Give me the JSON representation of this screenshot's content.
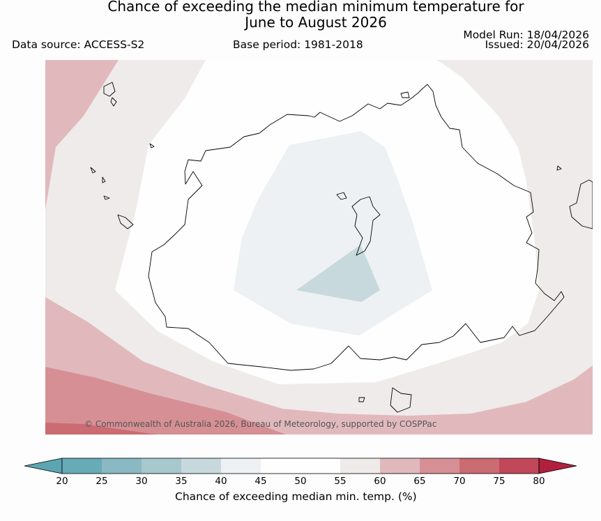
{
  "header": {
    "title_line1": "Chance of exceeding the median minimum temperature for",
    "title_line2": "June to August 2026",
    "data_source": "Data source: ACCESS-S2",
    "base_period": "Base period: 1981-2018",
    "model_run": "Model Run: 18/04/2026",
    "issued": "Issued: 20/04/2026"
  },
  "map": {
    "copyright": "© Commonwealth of Australia 2026, Bureau of Meteorology, supported by COSPPac"
  },
  "legend": {
    "label": "Chance of exceeding median min. temp. (%)",
    "ticks": [
      "20",
      "25",
      "30",
      "35",
      "40",
      "45",
      "50",
      "55",
      "60",
      "65",
      "70",
      "75",
      "80"
    ],
    "colors": [
      "#67abb7",
      "#8ab9c3",
      "#a7c8cc",
      "#c7d9dd",
      "#edf1f3",
      "#fdfefd",
      "#fdfefd",
      "#efebea",
      "#e1b9bd",
      "#d68f95",
      "#cb6b72",
      "#c1485a"
    ],
    "under_color": "#5ca5b3",
    "over_color": "#b1203e"
  }
}
